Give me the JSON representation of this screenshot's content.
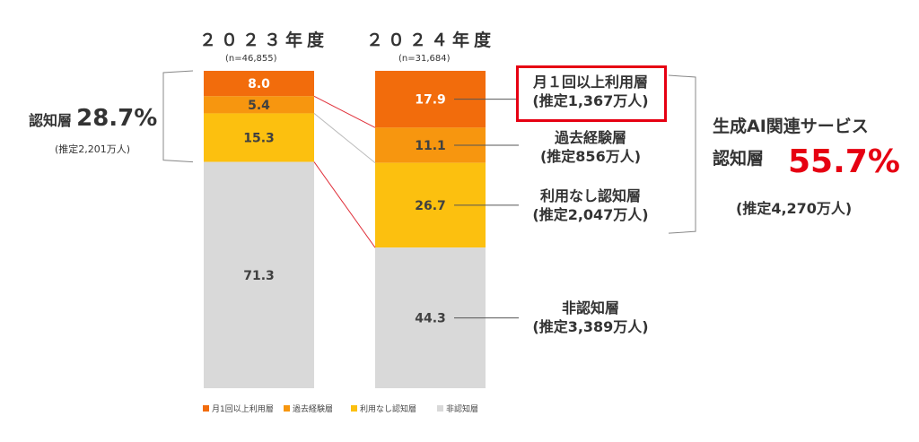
{
  "chart_data": {
    "type": "bar",
    "stacked": true,
    "categories": [
      "２０２３年度",
      "２０２４年度"
    ],
    "sample_sizes": [
      "(n=46,855)",
      "(n=31,684)"
    ],
    "series": [
      {
        "name": "月1回以上利用層",
        "values": [
          8.0,
          17.9
        ],
        "color": "#f26c0c"
      },
      {
        "name": "過去経験層",
        "values": [
          5.4,
          11.1
        ],
        "color": "#f7960f"
      },
      {
        "name": "利用なし認知層",
        "values": [
          15.3,
          26.7
        ],
        "color": "#fcc00f"
      },
      {
        "name": "非認知層",
        "values": [
          71.3,
          44.3
        ],
        "color": "#d9d9d9"
      }
    ],
    "value_labels": [
      [
        "8.0",
        "5.4",
        "15.3",
        "71.3"
      ],
      [
        "17.9",
        "11.1",
        "26.7",
        "44.3"
      ]
    ],
    "ylim": [
      0,
      100
    ],
    "legend_position": "bottom"
  },
  "annotations": {
    "left_aware_label": "認知層",
    "left_aware_pct": "28.7%",
    "left_aware_est": "(推定2,201万人)",
    "cat_monthly": [
      "月１回以上利用層",
      "(推定1,367万人)"
    ],
    "cat_past": [
      "過去経験層",
      "(推定856万人)"
    ],
    "cat_noncurrent": [
      "利用なし認知層",
      "(推定2,047万人)"
    ],
    "cat_unaware": [
      "非認知層",
      "(推定3,389万人)"
    ],
    "right_title": "生成AI関連サービス",
    "right_label": "認知層",
    "right_pct": "55.7%",
    "right_est": "(推定4,270万人)"
  },
  "legend": [
    "月1回以上利用層",
    "過去経験層",
    "利用なし認知層",
    "非認知層"
  ]
}
